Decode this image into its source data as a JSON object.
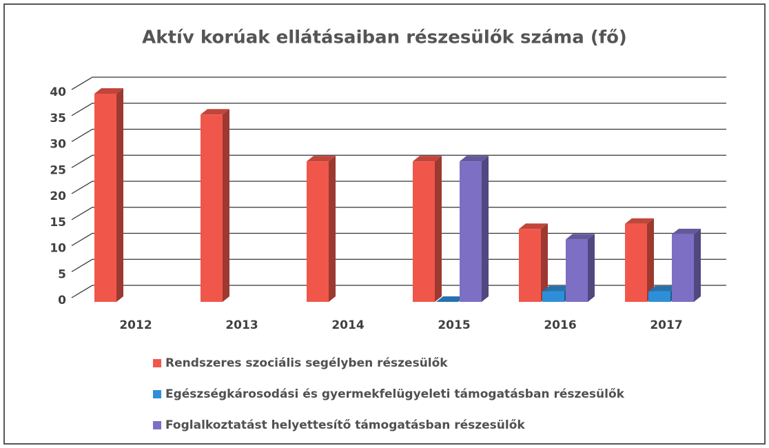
{
  "chart_data": {
    "type": "bar3d",
    "title": "Aktív korúak ellátásaiban részesülők száma (fő)",
    "categories": [
      "2012",
      "2013",
      "2014",
      "2015",
      "2016",
      "2017"
    ],
    "series": [
      {
        "name": "Rendszeres szociális segélyben részesülők",
        "color": "#f0574a",
        "values": [
          40,
          36,
          27,
          27,
          14,
          15
        ]
      },
      {
        "name": "Egészségkárosodási és gyermekfelügyeleti támogatásban részesülők",
        "color": "#2e8fd8",
        "values": [
          null,
          null,
          null,
          0,
          2,
          2
        ]
      },
      {
        "name": "Foglalkoztatást helyettesítő támogatásban részesülők",
        "color": "#7d6fc4",
        "values": [
          null,
          null,
          null,
          27,
          12,
          13
        ]
      }
    ],
    "ylim": [
      0,
      40
    ],
    "yticks": [
      0,
      5,
      10,
      15,
      20,
      25,
      30,
      35,
      40
    ],
    "grid": true,
    "legend": "bottom"
  }
}
